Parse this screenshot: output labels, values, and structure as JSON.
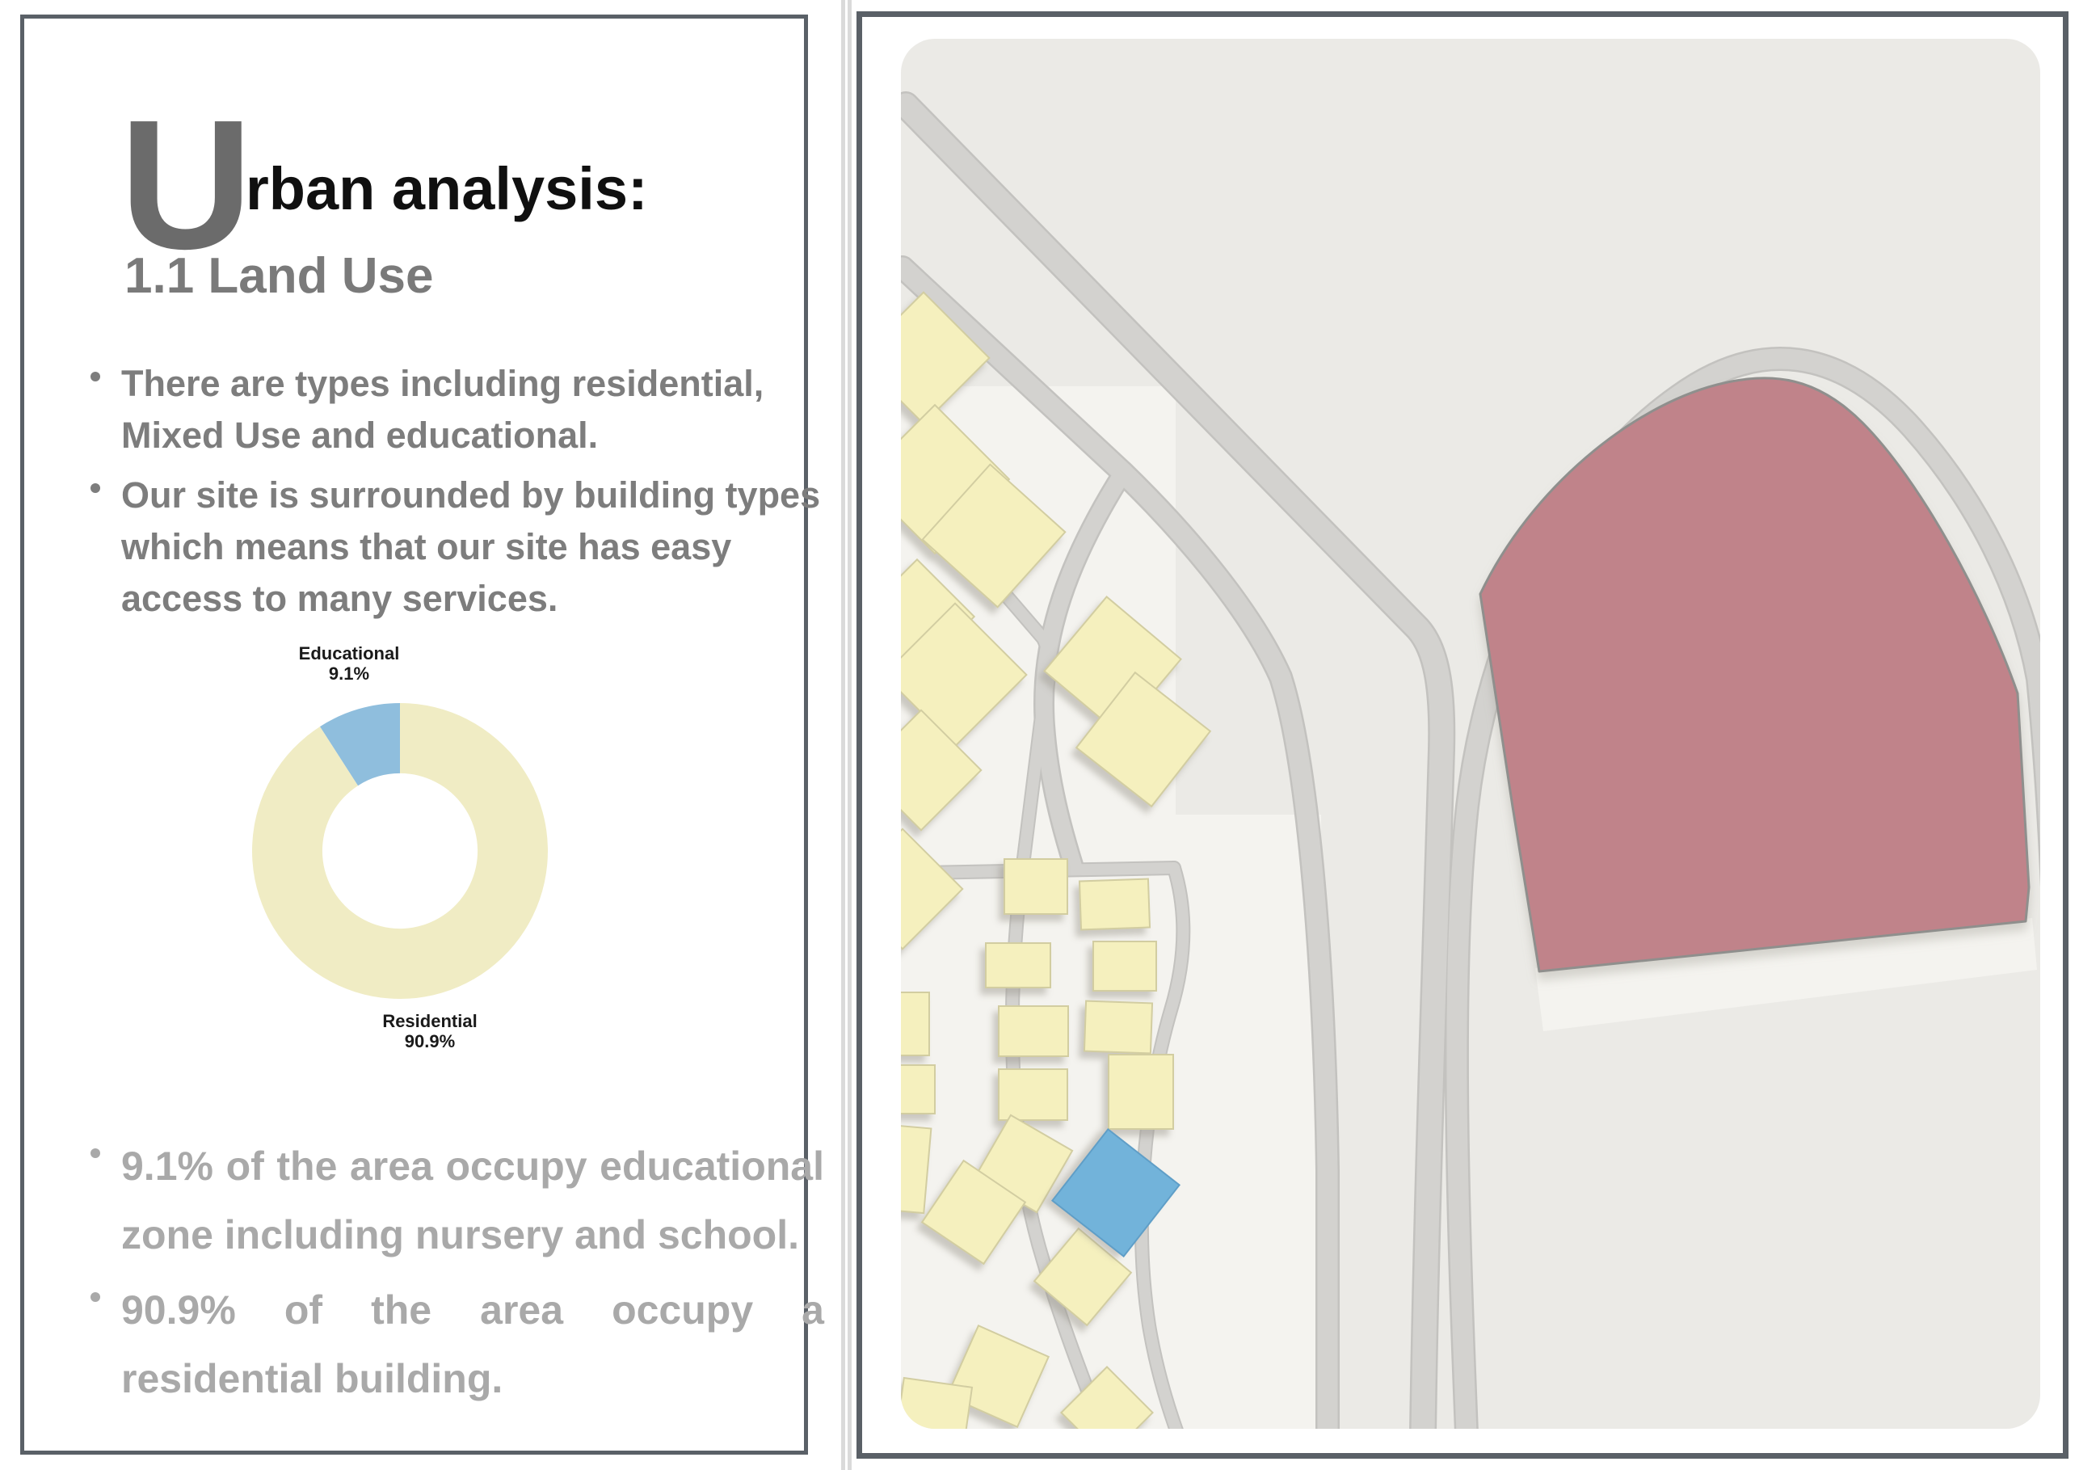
{
  "left_panel": {
    "title_dropcap": "U",
    "title_rest": "rban analysis:",
    "subtitle": "1.1 Land Use",
    "bullets_top": [
      "There are types including residential, Mixed Use and educational.",
      "Our site is surrounded by building types which means that our site has easy access to many services."
    ],
    "bullets_bottom": [
      "9.1% of the area occupy educational zone including nursery and school.",
      "90.9% of the area occupy a residential building."
    ]
  },
  "chart_data": {
    "type": "pie",
    "style": "donut",
    "title": "",
    "segments": [
      {
        "label": "Educational",
        "value": 9.1,
        "display": "9.1%",
        "color": "#8fbedd"
      },
      {
        "label": "Residential",
        "value": 90.9,
        "display": "90.9%",
        "color": "#f0ecc4"
      }
    ],
    "start_angle_deg": -32.76,
    "direction": "clockwise",
    "hole_ratio": 0.525,
    "legend_position": "none",
    "grid": false
  },
  "map": {
    "colors": {
      "map-bg": "#ebeae6",
      "road": "#d3d2cf",
      "road-edge": "#c3c2bf",
      "building": "#f5f0be",
      "building-stroke": "#d2cda1",
      "edu-building": "#72b3da",
      "edu-stroke": "#5f9ec7",
      "site": "#c0838a",
      "site-stroke": "#8f8f8d",
      "patch": "#f4f3ef"
    }
  },
  "theme": {
    "frame": "#5a6067",
    "divider": "#dadada",
    "dropcap": "#6b6b6b",
    "heading": "#101010",
    "subtitle": "#7a7a7a",
    "body": "#7d7d7d",
    "muted": "#a9a9a9",
    "chart-label": "#1a1a1a",
    "page-bg": "#ffffff"
  }
}
